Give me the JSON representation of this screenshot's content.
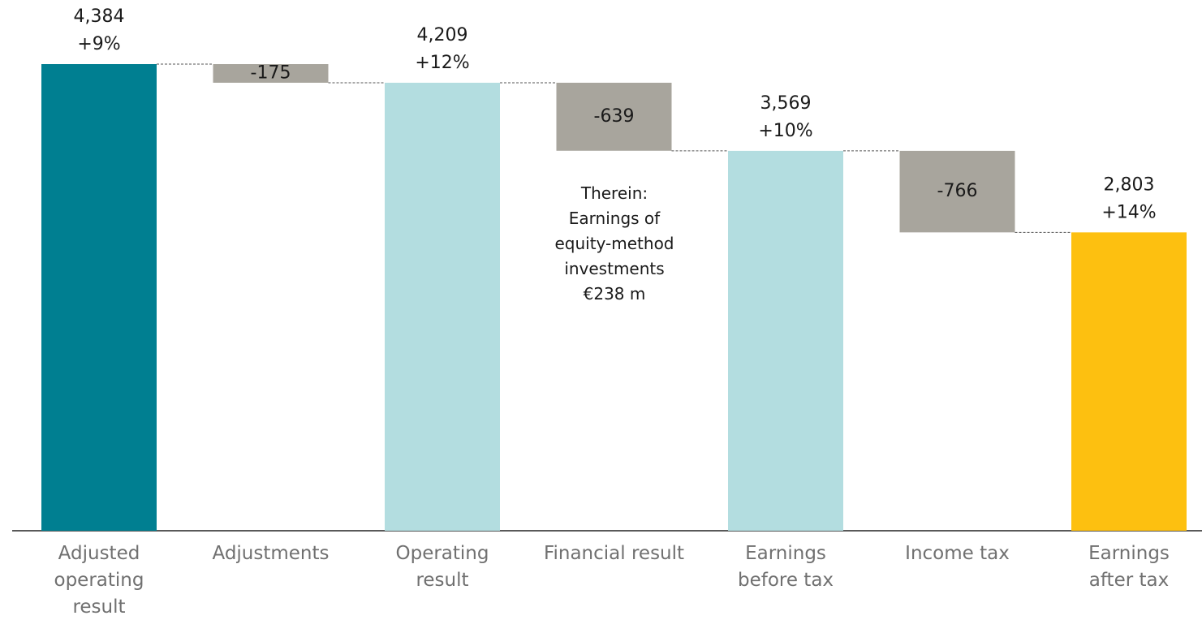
{
  "chart_data": {
    "type": "waterfall",
    "categories": [
      "Adjusted operating result",
      "Adjustments",
      "Operating result",
      "Financial result",
      "Earnings before tax",
      "Income tax",
      "Earnings after tax"
    ],
    "values": [
      4384,
      -175,
      4209,
      -639,
      3569,
      -766,
      2803
    ],
    "value_labels": [
      "4,384",
      "-175",
      "4,209",
      "-639",
      "3,569",
      "-766",
      "2,803"
    ],
    "changes": [
      {
        "value": 9,
        "label": "+9%"
      },
      null,
      {
        "value": 12,
        "label": "+12%"
      },
      null,
      {
        "value": 10,
        "label": "+10%"
      },
      null,
      {
        "value": 14,
        "label": "+14%"
      }
    ],
    "colors": [
      "#007f91",
      "#a8a59d",
      "#b3dde0",
      "#a8a59d",
      "#b3dde0",
      "#a8a59d",
      "#fdc010"
    ],
    "annotation": "Therein: Earnings of equity-method investments €238 m"
  }
}
